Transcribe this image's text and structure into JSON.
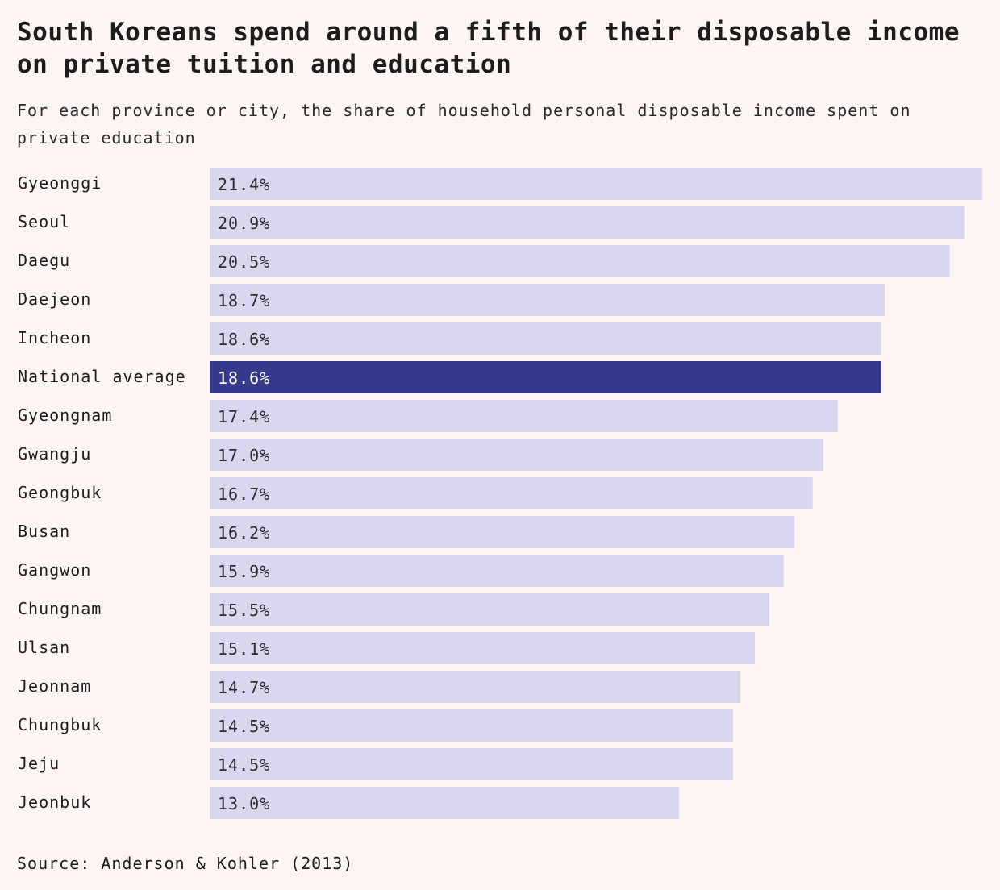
{
  "chart_data": {
    "type": "bar",
    "orientation": "horizontal",
    "title": "South Koreans spend around a fifth of their disposable income on private tuition and education",
    "subtitle": "For each province or city, the share of household personal disposable income spent on private education",
    "source": "Source: Anderson & Kohler (2013)",
    "unit": "%",
    "xlim": [
      0,
      21.4
    ],
    "highlight": "National average",
    "categories": [
      "Gyeonggi",
      "Seoul",
      "Daegu",
      "Daejeon",
      "Incheon",
      "National average",
      "Gyeongnam",
      "Gwangju",
      "Geongbuk",
      "Busan",
      "Gangwon",
      "Chungnam",
      "Ulsan",
      "Jeonnam",
      "Chungbuk",
      "Jeju",
      "Jeonbuk"
    ],
    "values": [
      21.4,
      20.9,
      20.5,
      18.7,
      18.6,
      18.6,
      17.4,
      17.0,
      16.7,
      16.2,
      15.9,
      15.5,
      15.1,
      14.7,
      14.5,
      14.5,
      13.0
    ],
    "labels": [
      "21.4%",
      "20.9%",
      "20.5%",
      "18.7%",
      "18.6%",
      "18.6%",
      "17.4%",
      "17.0%",
      "16.7%",
      "16.2%",
      "15.9%",
      "15.5%",
      "15.1%",
      "14.7%",
      "14.5%",
      "14.5%",
      "13.0%"
    ]
  },
  "colors": {
    "bar": "#d8d7ef",
    "bar_highlight": "#363a8c",
    "label_dark": "#2b2b2b",
    "label_light": "#ffffff",
    "category_text": "#1c1c1c"
  }
}
